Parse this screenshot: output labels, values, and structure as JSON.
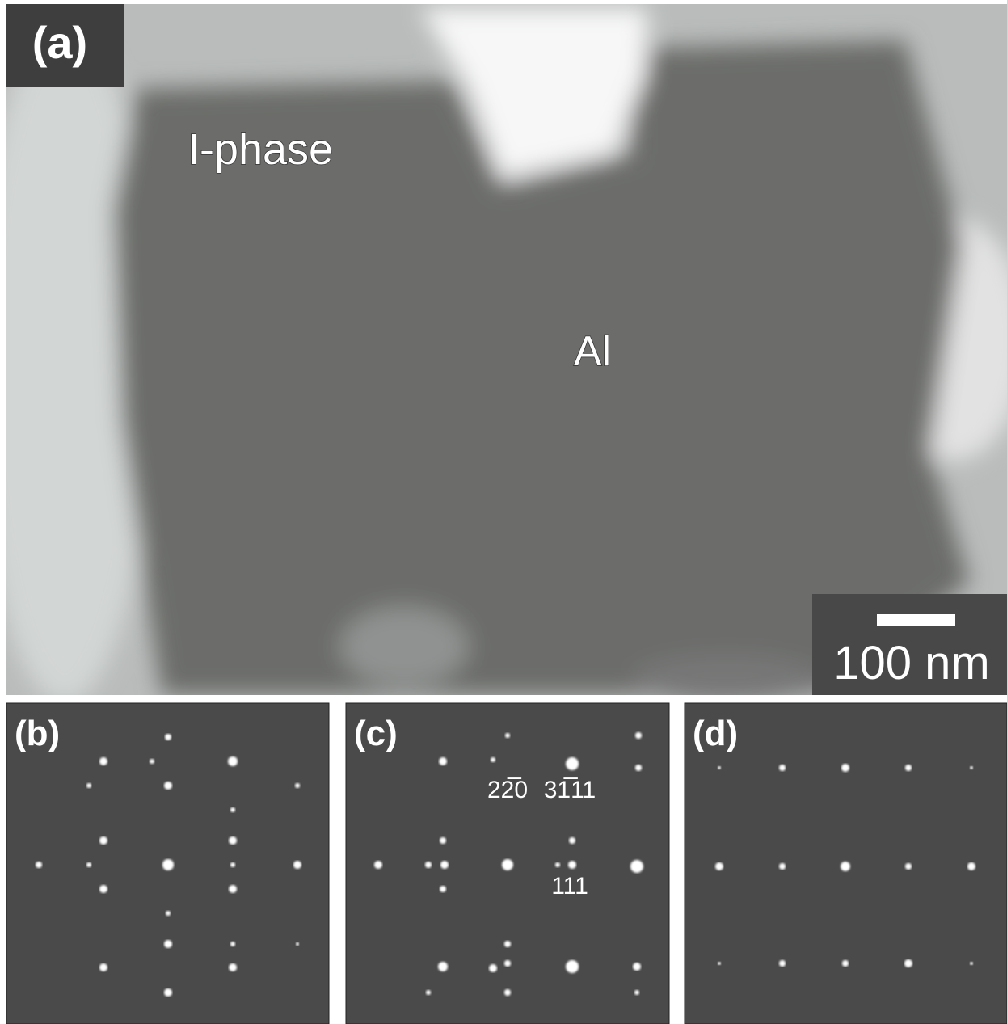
{
  "panel_a": {
    "label": "(a)",
    "regions": [
      "I-phase",
      "Al"
    ],
    "scale_bar": "100 nm"
  },
  "panel_b": {
    "label": "(b)"
  },
  "panel_c": {
    "label": "(c)",
    "indices": [
      "22̅0",
      "31̅11",
      "111"
    ]
  },
  "panel_d": {
    "label": "(d)"
  }
}
